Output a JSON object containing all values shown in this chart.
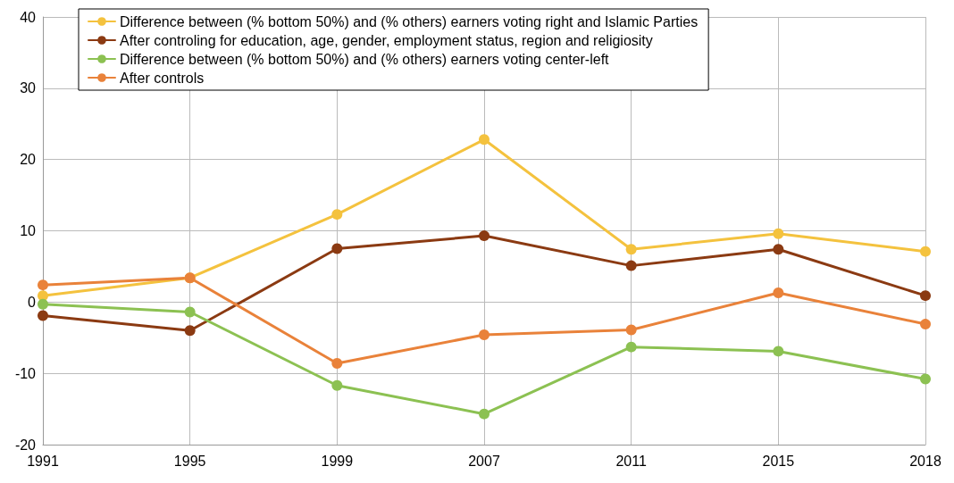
{
  "chart_data": {
    "type": "line",
    "categories": [
      "1991",
      "1995",
      "1999",
      "2007",
      "2011",
      "2015",
      "2018"
    ],
    "series": [
      {
        "name": "Difference between (% bottom 50%) and (% others) earners voting right and Islamic Parties",
        "color": "#f4c23e",
        "values": [
          0.9,
          3.4,
          12.3,
          22.8,
          7.4,
          9.6,
          7.1
        ]
      },
      {
        "name": "After controling for education, age, gender, employment status, region and religiosity",
        "color": "#8b3a12",
        "values": [
          -1.9,
          -4.0,
          7.5,
          9.3,
          5.1,
          7.4,
          0.9
        ]
      },
      {
        "name": "Difference between (% bottom 50%) and (% others) earners voting center-left",
        "color": "#8cc152",
        "values": [
          -0.3,
          -1.4,
          -11.7,
          -15.7,
          -6.3,
          -6.9,
          -10.8
        ]
      },
      {
        "name": "After controls",
        "color": "#e9823a",
        "values": [
          2.4,
          3.4,
          -8.6,
          -4.6,
          -3.9,
          1.3,
          -3.1
        ]
      }
    ],
    "ylim": [
      -20,
      40
    ],
    "yticks": [
      -20,
      -10,
      0,
      10,
      20,
      30,
      40
    ],
    "grid": true,
    "legend": "top",
    "marker": "circle",
    "line_style": "solid"
  }
}
